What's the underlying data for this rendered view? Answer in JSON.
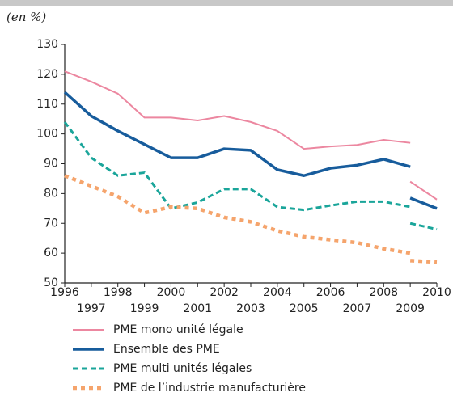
{
  "chart_data": {
    "type": "line",
    "unit_note": "(en %)",
    "x": [
      1996,
      1997,
      1998,
      1999,
      2000,
      2001,
      2002,
      2003,
      2004,
      2005,
      2006,
      2007,
      2008,
      2009,
      2009,
      2009,
      2010
    ],
    "series": [
      {
        "name": "PME mono unité légale",
        "color": "#ec87a0",
        "dash": "solid",
        "values": [
          121,
          117.5,
          113.5,
          105.5,
          105.5,
          104.5,
          106,
          104,
          101,
          95,
          95.8,
          96.3,
          98,
          97,
          null,
          84,
          78
        ]
      },
      {
        "name": "Ensemble des PME",
        "color": "#175c9c",
        "dash": "solid",
        "values": [
          114,
          106,
          101,
          96.5,
          92,
          92,
          95,
          94.5,
          88,
          86,
          88.5,
          89.5,
          91.5,
          89,
          null,
          78.5,
          75
        ]
      },
      {
        "name": "PME multi unités légales",
        "color": "#1aa59a",
        "dash": "dashed",
        "values": [
          104,
          92,
          86,
          87,
          75,
          77,
          81.5,
          81.5,
          75.5,
          74.5,
          76,
          77.3,
          77.3,
          75.5,
          null,
          70,
          68
        ]
      },
      {
        "name": "PME de l’industrie manufacturière",
        "color": "#f5a46c",
        "dash": "dotted",
        "values": [
          86,
          82.5,
          79,
          73.5,
          75.5,
          75,
          72,
          70.5,
          67.5,
          65.5,
          64.5,
          63.5,
          61.5,
          60,
          null,
          57.5,
          57
        ]
      }
    ],
    "xlim": [
      1996,
      2010
    ],
    "xticks": [
      1996,
      1997,
      1998,
      1999,
      2000,
      2001,
      2002,
      2003,
      2004,
      2005,
      2006,
      2007,
      2008,
      2009,
      2010
    ],
    "ylim": [
      50,
      130
    ],
    "yticks": [
      50,
      60,
      70,
      80,
      90,
      100,
      110,
      120,
      130
    ],
    "grid": false
  }
}
